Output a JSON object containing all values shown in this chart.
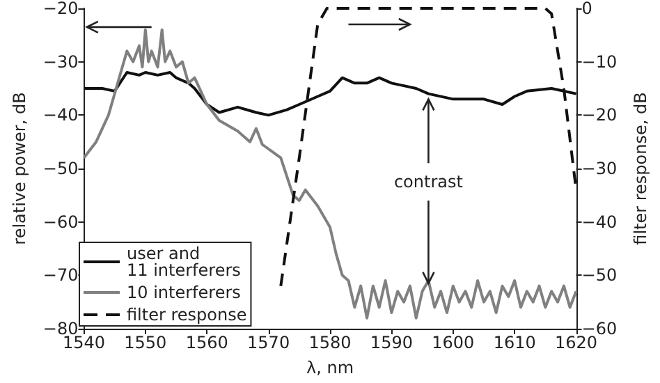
{
  "chart_data": {
    "type": "line",
    "xlabel": "λ, nm",
    "ylabel": "relative power, dB",
    "y2label": "filter response, dB",
    "xlim": [
      1540,
      1620
    ],
    "xticks": [
      1540,
      1550,
      1560,
      1570,
      1580,
      1590,
      1600,
      1610,
      1620
    ],
    "ylim": [
      -80,
      -20
    ],
    "yticks": [
      -80,
      -70,
      -60,
      -50,
      -40,
      -30,
      -20
    ],
    "y2lim": [
      -60,
      0
    ],
    "y2ticks": [
      -60,
      -50,
      -40,
      -30,
      -20,
      -10,
      0
    ],
    "grid": false,
    "legend": "bottom left",
    "marker": "none",
    "annotations": [
      {
        "text": "contrast",
        "x": 1596,
        "y": -36
      }
    ],
    "series": [
      {
        "name": "user and\n11 interferers",
        "color": "#111111",
        "line_style": "solid",
        "x": [
          1540,
          1543,
          1545,
          1547,
          1549,
          1550,
          1552,
          1554,
          1555,
          1557,
          1558,
          1560,
          1562,
          1565,
          1568,
          1570,
          1573,
          1575,
          1578,
          1580,
          1582,
          1584,
          1586,
          1588,
          1590,
          1592,
          1594,
          1596,
          1600,
          1605,
          1608,
          1610,
          1612,
          1616,
          1620
        ],
        "values": [
          -35,
          -35,
          -35.5,
          -32,
          -32.5,
          -32,
          -32.5,
          -32,
          -33,
          -34,
          -35,
          -38,
          -39.5,
          -38.5,
          -39.5,
          -40,
          -39,
          -38,
          -36.5,
          -35.5,
          -33,
          -34,
          -34,
          -33,
          -34,
          -34.5,
          -35,
          -36,
          -37,
          -37,
          -38,
          -36.5,
          -35.5,
          -35,
          -36
        ]
      },
      {
        "name": "10 interferers",
        "color": "#808080",
        "line_style": "solid",
        "x": [
          1540,
          1542,
          1544,
          1546,
          1547,
          1548,
          1549,
          1549.5,
          1550,
          1550.5,
          1551,
          1552,
          1552.7,
          1553.2,
          1554,
          1555,
          1556,
          1557,
          1558,
          1560,
          1562,
          1565,
          1567,
          1568,
          1569,
          1572,
          1574,
          1575,
          1576,
          1578,
          1580,
          1581,
          1582,
          1583,
          1584,
          1585,
          1586,
          1587,
          1588,
          1589,
          1590,
          1591,
          1592,
          1593,
          1594,
          1595,
          1596,
          1597,
          1598,
          1599,
          1600,
          1601,
          1602,
          1603,
          1604,
          1605,
          1606,
          1607,
          1608,
          1609,
          1610,
          1611,
          1612,
          1613,
          1614,
          1615,
          1616,
          1617,
          1618,
          1619,
          1620
        ],
        "values": [
          -48,
          -45,
          -40,
          -32,
          -28,
          -30,
          -27,
          -31,
          -24,
          -30,
          -28,
          -31,
          -24,
          -30,
          -28,
          -31,
          -30,
          -34,
          -33,
          -38,
          -41,
          -43,
          -45,
          -42.5,
          -45.5,
          -48,
          -55,
          -56,
          -54,
          -57,
          -61,
          -66,
          -70,
          -71,
          -76,
          -72,
          -78,
          -72,
          -76,
          -71,
          -77,
          -73,
          -75,
          -72,
          -78,
          -73,
          -71,
          -76,
          -73,
          -77,
          -72,
          -75,
          -73,
          -76,
          -71,
          -75,
          -73,
          -77,
          -72,
          -74,
          -71,
          -76,
          -73,
          -75,
          -72,
          -76,
          -73,
          -75,
          -72,
          -76,
          -73
        ]
      },
      {
        "name": "filter response",
        "color": "#111111",
        "line_style": "dashed",
        "axis": "y2",
        "x": [
          1572,
          1575,
          1578,
          1579.5,
          1590,
          1600,
          1610,
          1615,
          1616,
          1618,
          1620
        ],
        "values": [
          -52,
          -28,
          -3,
          0,
          0,
          0,
          0,
          0,
          -1,
          -15,
          -34
        ]
      }
    ]
  }
}
